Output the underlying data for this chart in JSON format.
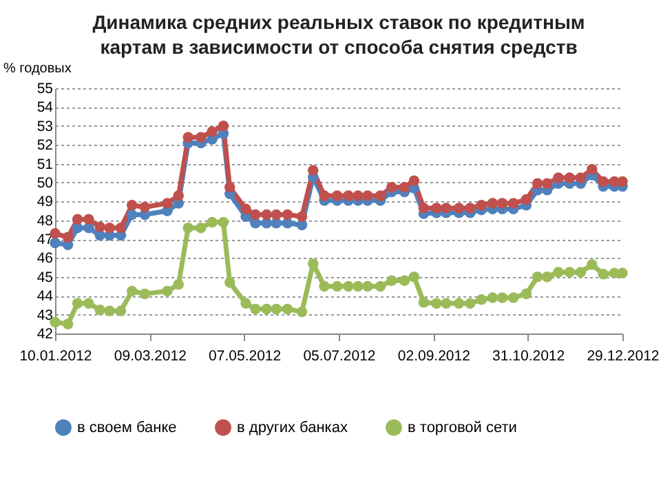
{
  "chart_data": {
    "type": "line",
    "title": "Динамика средних реальных ставок по кредитным картам в зависимости от способа снятия средств",
    "ylabel": "% годовых",
    "x": [
      "2012-01-10",
      "2012-01-18",
      "2012-01-24",
      "2012-01-31",
      "2012-02-07",
      "2012-02-13",
      "2012-02-20",
      "2012-02-27",
      "2012-03-06",
      "2012-03-20",
      "2012-03-27",
      "2012-04-02",
      "2012-04-10",
      "2012-04-17",
      "2012-04-24",
      "2012-04-28",
      "2012-05-08",
      "2012-05-14",
      "2012-05-21",
      "2012-05-27",
      "2012-06-03",
      "2012-06-12",
      "2012-06-19",
      "2012-06-26",
      "2012-07-04",
      "2012-07-11",
      "2012-07-17",
      "2012-07-23",
      "2012-07-31",
      "2012-08-07",
      "2012-08-15",
      "2012-08-21",
      "2012-08-27",
      "2012-09-04",
      "2012-09-10",
      "2012-09-18",
      "2012-09-25",
      "2012-10-02",
      "2012-10-09",
      "2012-10-15",
      "2012-10-22",
      "2012-10-30",
      "2012-11-06",
      "2012-11-12",
      "2012-11-19",
      "2012-11-26",
      "2012-12-03",
      "2012-12-10",
      "2012-12-17",
      "2012-12-24",
      "2012-12-29"
    ],
    "series": [
      {
        "name": "в своем банке",
        "color": "#4f81bd",
        "values": [
          46.8,
          46.7,
          47.6,
          47.6,
          47.2,
          47.2,
          47.2,
          48.3,
          48.3,
          48.5,
          48.9,
          52.1,
          52.1,
          52.3,
          52.6,
          49.4,
          48.2,
          47.85,
          47.85,
          47.85,
          47.85,
          47.75,
          50.3,
          49.05,
          49.05,
          49.05,
          49.05,
          49.05,
          49.05,
          49.5,
          49.5,
          49.7,
          48.35,
          48.4,
          48.4,
          48.4,
          48.4,
          48.55,
          48.6,
          48.6,
          48.6,
          48.8,
          49.6,
          49.6,
          49.95,
          49.95,
          49.95,
          50.4,
          49.8,
          49.8,
          49.8
        ]
      },
      {
        "name": "в других банках",
        "color": "#c0504d",
        "values": [
          47.3,
          47.1,
          48.05,
          48.05,
          47.65,
          47.6,
          47.6,
          48.8,
          48.7,
          48.9,
          49.3,
          52.4,
          52.4,
          52.7,
          53.0,
          49.75,
          48.6,
          48.3,
          48.3,
          48.3,
          48.3,
          48.2,
          50.65,
          49.3,
          49.3,
          49.3,
          49.3,
          49.3,
          49.3,
          49.75,
          49.75,
          50.1,
          48.65,
          48.65,
          48.65,
          48.65,
          48.65,
          48.8,
          48.9,
          48.9,
          48.9,
          49.1,
          49.95,
          49.95,
          50.25,
          50.25,
          50.25,
          50.7,
          50.05,
          50.05,
          50.05
        ]
      },
      {
        "name": "в торговой сети",
        "color": "#9bbb59",
        "values": [
          42.6,
          42.5,
          43.6,
          43.6,
          43.25,
          43.2,
          43.2,
          44.25,
          44.1,
          44.25,
          44.6,
          47.6,
          47.6,
          47.9,
          47.9,
          44.7,
          43.6,
          43.3,
          43.3,
          43.3,
          43.3,
          43.15,
          45.7,
          44.5,
          44.5,
          44.5,
          44.5,
          44.5,
          44.5,
          44.8,
          44.8,
          45.0,
          43.65,
          43.6,
          43.6,
          43.6,
          43.6,
          43.8,
          43.9,
          43.9,
          43.9,
          44.1,
          45.0,
          45.0,
          45.25,
          45.25,
          45.25,
          45.65,
          45.15,
          45.2,
          45.2
        ]
      }
    ],
    "xlim": [
      "2012-01-10",
      "2012-12-29"
    ],
    "xticks": [
      {
        "value": "2012-01-10",
        "label": "10.01.2012"
      },
      {
        "value": "2012-03-09",
        "label": "09.03.2012"
      },
      {
        "value": "2012-05-07",
        "label": "07.05.2012"
      },
      {
        "value": "2012-07-05",
        "label": "05.07.2012"
      },
      {
        "value": "2012-09-02",
        "label": "02.09.2012"
      },
      {
        "value": "2012-10-31",
        "label": "31.10.2012"
      },
      {
        "value": "2012-12-29",
        "label": "29.12.2012"
      }
    ],
    "ylim": [
      42,
      55
    ],
    "yticks": [
      42,
      43,
      44,
      45,
      46,
      47,
      48,
      49,
      50,
      51,
      52,
      53,
      54,
      55
    ],
    "grid": "y",
    "legend": "bottom",
    "marker": "circle",
    "line_style": "solid"
  }
}
